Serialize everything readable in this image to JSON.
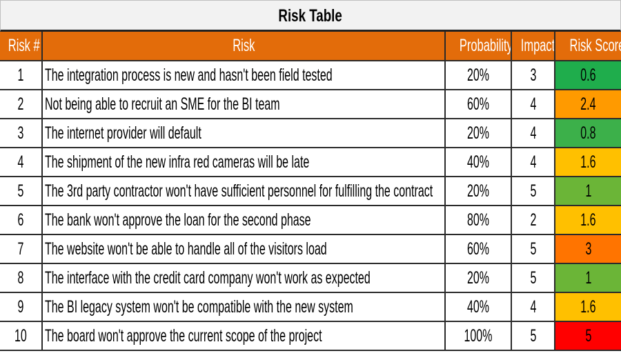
{
  "title": "Risk Table",
  "headers": [
    "Risk #",
    "Risk",
    "Probability",
    "Impact",
    "Risk Score"
  ],
  "score_colors": {
    "0.6": "#1fad4c",
    "0.8": "#3cb04a",
    "1": "#6bb537",
    "1.6": "#ffc000",
    "2.4": "#ff9a00",
    "3": "#ff7400",
    "5": "#ff0000"
  },
  "rows": [
    {
      "num": "1",
      "risk": "The integration process is new and hasn't been field tested",
      "probability": "20%",
      "impact": "3",
      "score": "0.6"
    },
    {
      "num": "2",
      "risk": "Not being able to recruit an SME for the BI team",
      "probability": "60%",
      "impact": "4",
      "score": "2.4"
    },
    {
      "num": "3",
      "risk": "The internet provider will default",
      "probability": "20%",
      "impact": "4",
      "score": "0.8"
    },
    {
      "num": "4",
      "risk": "The shipment of the new infra red cameras will be late",
      "probability": "40%",
      "impact": "4",
      "score": "1.6"
    },
    {
      "num": "5",
      "risk": "The 3rd party contractor won't have sufficient personnel for fulfilling the contract",
      "probability": "20%",
      "impact": "5",
      "score": "1"
    },
    {
      "num": "6",
      "risk": "The bank won't approve the loan for the second phase",
      "probability": "80%",
      "impact": "2",
      "score": "1.6"
    },
    {
      "num": "7",
      "risk": "The website won't be able to handle all of the visitors load",
      "probability": "60%",
      "impact": "5",
      "score": "3"
    },
    {
      "num": "8",
      "risk": "The interface with the credit card company won't work as expected",
      "probability": "20%",
      "impact": "5",
      "score": "1"
    },
    {
      "num": "9",
      "risk": "The BI legacy system won't be compatible with the new system",
      "probability": "40%",
      "impact": "4",
      "score": "1.6"
    },
    {
      "num": "10",
      "risk": "The board won't approve the current scope of the project",
      "probability": "100%",
      "impact": "5",
      "score": "5"
    }
  ]
}
